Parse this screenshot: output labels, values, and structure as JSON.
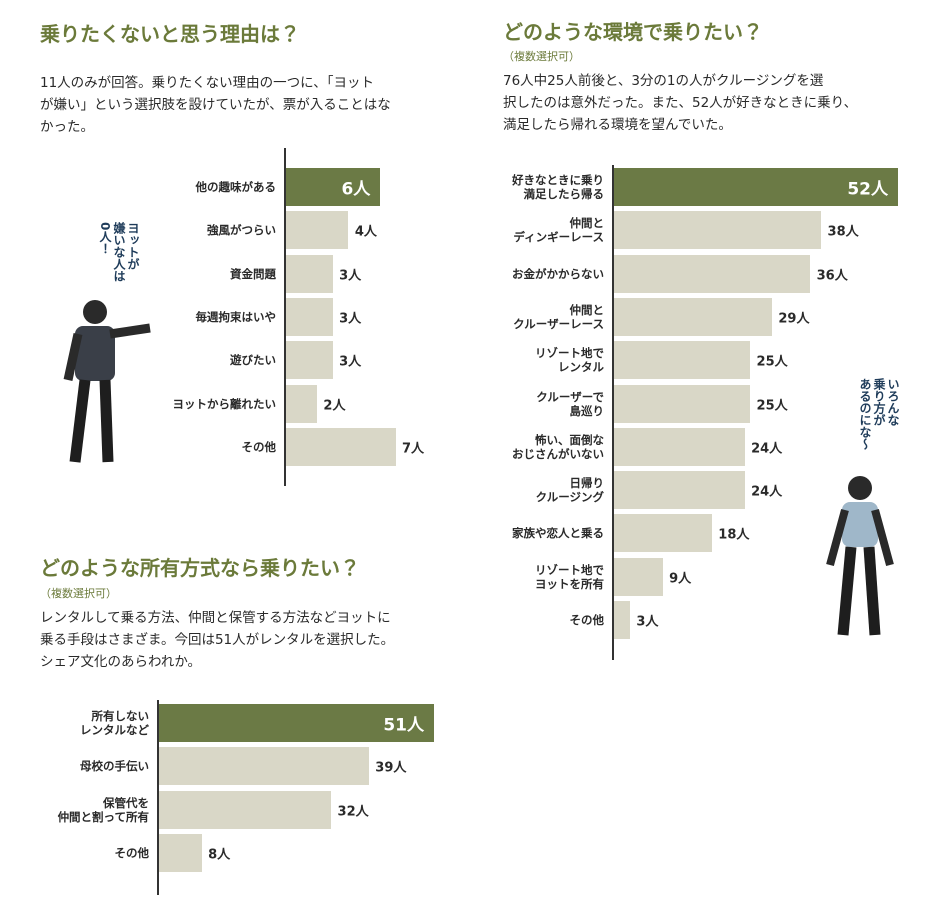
{
  "chart_data": [
    {
      "type": "bar",
      "title": "乗りたくないと思う理由は？",
      "description": "11人のみが回答。乗りたくない理由の一つに、「ヨット\nが嫌い」という選択肢を設けていたが、票が入ることはな\nかった。",
      "categories": [
        "他の趣味がある",
        "強風がつらい",
        "資金問題",
        "毎週拘束はいや",
        "遊びたい",
        "ヨットから離れたい",
        "その他"
      ],
      "values": [
        6,
        4,
        3,
        3,
        3,
        2,
        7
      ],
      "value_labels": [
        "6人",
        "4人",
        "3人",
        "3人",
        "3人",
        "2人",
        "7人"
      ],
      "colors": [
        "#6b7a45",
        "#d9d7c7",
        "#d9d7c7",
        "#d9d7c7",
        "#d9d7c7",
        "#d9d7c7",
        "#d9d7c7"
      ],
      "annotation": "ヨットが\n嫌いな人は\n0人！"
    },
    {
      "type": "bar",
      "title": "どのような環境で乗りたい？",
      "subtitle": "（複数選択可）",
      "description": "76人中25人前後と、3分の1の人がクルージングを選\n択したのは意外だった。また、52人が好きなときに乗り、\n満足したら帰れる環境を望んでいた。",
      "categories": [
        "好きなときに乗り\n満足したら帰る",
        "仲間と\nディンギーレース",
        "お金がかからない",
        "仲間と\nクルーザーレース",
        "リゾート地で\nレンタル",
        "クルーザーで\n島巡り",
        "怖い、面倒な\nおじさんがいない",
        "日帰り\nクルージング",
        "家族や恋人と乗る",
        "リゾート地で\nヨットを所有",
        "その他"
      ],
      "values": [
        52,
        38,
        36,
        29,
        25,
        25,
        24,
        24,
        18,
        9,
        3
      ],
      "value_labels": [
        "52人",
        "38人",
        "36人",
        "29人",
        "25人",
        "25人",
        "24人",
        "24人",
        "18人",
        "9人",
        "3人"
      ],
      "colors": [
        "#6b7a45",
        "#d9d7c7",
        "#d9d7c7",
        "#d9d7c7",
        "#d9d7c7",
        "#d9d7c7",
        "#d9d7c7",
        "#d9d7c7",
        "#d9d7c7",
        "#d9d7c7",
        "#d9d7c7"
      ],
      "annotation": "いろんな\n乗り方が\nあるのにな〜"
    },
    {
      "type": "bar",
      "title": "どのような所有方式なら乗りたい？",
      "subtitle": "（複数選択可）",
      "description": "レンタルして乗る方法、仲間と保管する方法などヨットに\n乗る手段はさまざま。今回は51人がレンタルを選択した。\nシェア文化のあらわれか。",
      "categories": [
        "所有しない\nレンタルなど",
        "母校の手伝い",
        "保管代を\n仲間と割って所有",
        "その他"
      ],
      "values": [
        51,
        39,
        32,
        8
      ],
      "value_labels": [
        "51人",
        "39人",
        "32人",
        "8人"
      ],
      "colors": [
        "#6b7a45",
        "#d9d7c7",
        "#d9d7c7",
        "#d9d7c7"
      ]
    }
  ]
}
